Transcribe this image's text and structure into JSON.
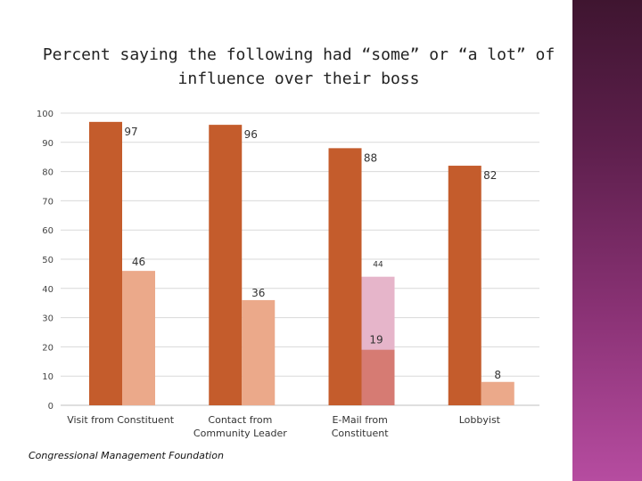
{
  "title": "Percent saying the following had “some” or “a lot” of influence over their boss",
  "source": "Congressional Management Foundation",
  "colors": {
    "dark": "#c45c2c",
    "light": "#eba98a",
    "email_secondary": "#e6b5ca",
    "email_overlay": "#d67b73",
    "grid": "#d9d9d9",
    "side_panel": "#8a3275"
  },
  "chart_data": {
    "type": "bar",
    "title": "Percent saying the following had “some” or “a lot” of influence over their boss",
    "categories": [
      [
        "Visit from Constituent"
      ],
      [
        "Contact from",
        "Community Leader"
      ],
      [
        "E-Mail from",
        "Constituent"
      ],
      [
        "Lobbyist"
      ]
    ],
    "series": [
      {
        "values": [
          97,
          96,
          88,
          82
        ]
      },
      {
        "values": [
          46,
          36,
          44,
          8
        ]
      },
      {
        "values": [
          null,
          null,
          19,
          null
        ]
      }
    ],
    "data_labels": [
      [
        "97",
        "96",
        "88",
        "82"
      ],
      [
        "46",
        "36",
        "44",
        "8"
      ],
      [
        "",
        "",
        "19",
        ""
      ]
    ],
    "ylim": [
      0,
      100
    ],
    "yticks": [
      0,
      10,
      20,
      30,
      40,
      50,
      60,
      70,
      80,
      90,
      100
    ],
    "grid": true
  }
}
